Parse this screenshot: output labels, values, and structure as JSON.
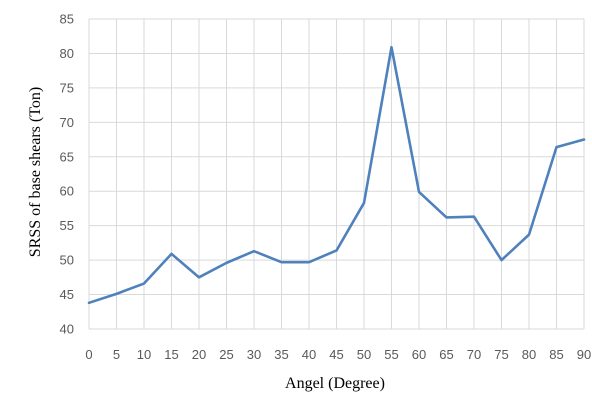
{
  "chart_data": {
    "type": "line",
    "title": "",
    "xlabel": "Angel (Degree)",
    "ylabel": "SRSS of base shears (Ton)",
    "x": [
      0,
      5,
      10,
      15,
      20,
      25,
      30,
      35,
      40,
      45,
      50,
      55,
      60,
      65,
      70,
      75,
      80,
      85,
      90
    ],
    "series": [
      {
        "values": [
          43.8,
          45.1,
          46.6,
          50.9,
          47.5,
          49.6,
          51.3,
          49.7,
          49.7,
          51.4,
          58.3,
          80.9,
          59.9,
          56.2,
          56.3,
          50.0,
          53.7,
          66.4,
          67.5
        ]
      }
    ],
    "xlim": [
      0,
      90
    ],
    "ylim": [
      40,
      85
    ],
    "y_ticks": [
      40,
      45,
      50,
      55,
      60,
      65,
      70,
      75,
      80,
      85
    ],
    "x_ticks": [
      0,
      5,
      10,
      15,
      20,
      25,
      30,
      35,
      40,
      45,
      50,
      55,
      60,
      65,
      70,
      75,
      80,
      85,
      90
    ],
    "grid": "both",
    "legend": "none",
    "line_color": "#4f81bd"
  }
}
